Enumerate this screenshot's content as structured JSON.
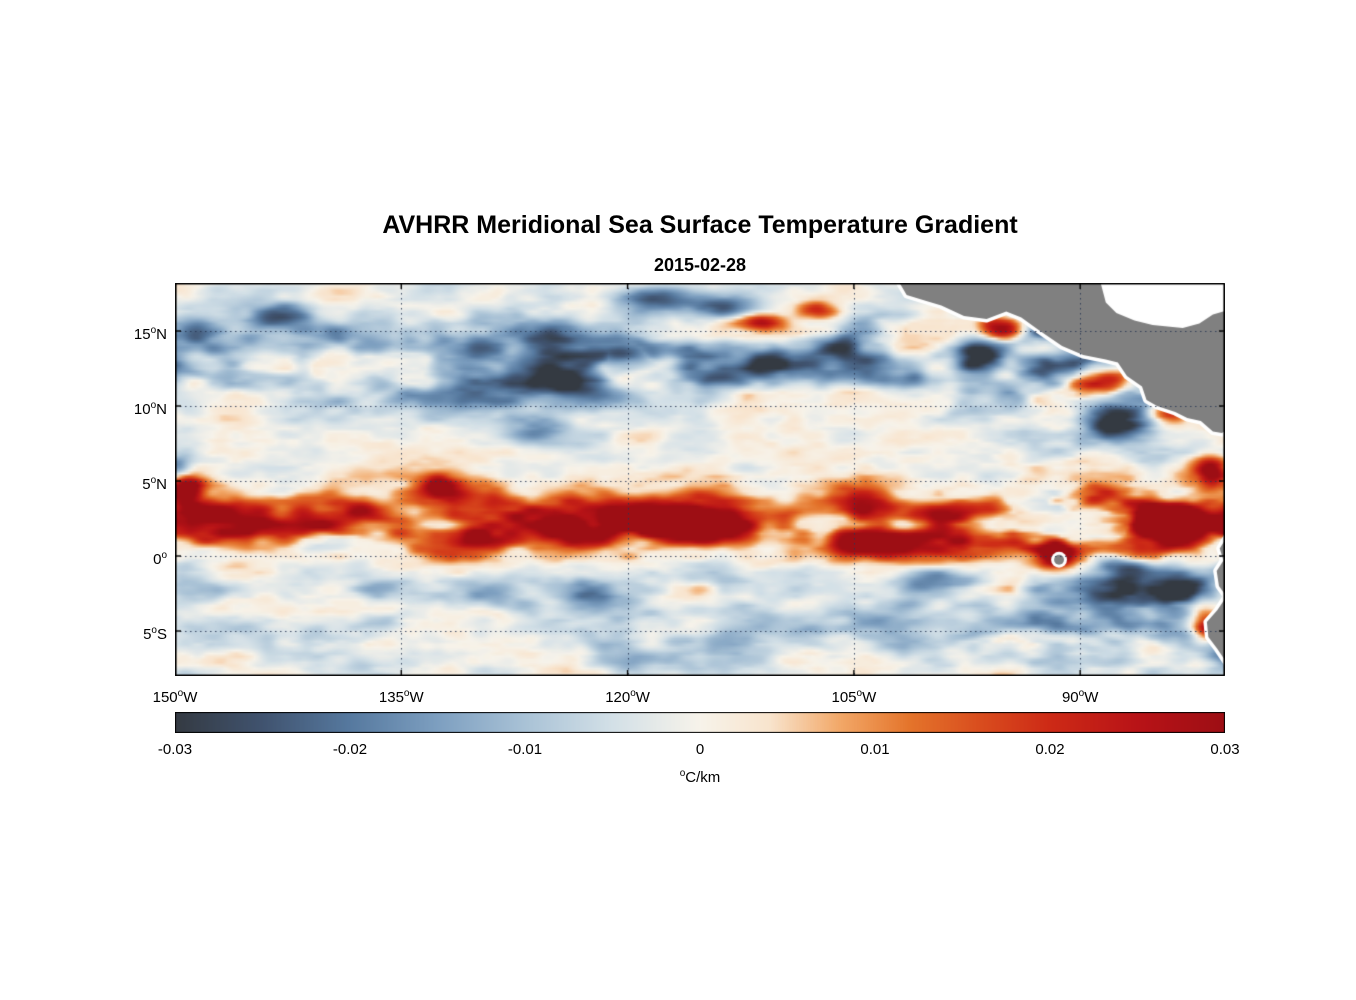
{
  "chart_data": {
    "type": "heatmap",
    "title": "AVHRR Meridional Sea Surface Temperature Gradient",
    "subtitle": "2015-02-28",
    "x_axis": {
      "sup": "o",
      "ticks": [
        {
          "value": -150,
          "num": "150",
          "hemi": "W"
        },
        {
          "value": -135,
          "num": "135",
          "hemi": "W"
        },
        {
          "value": -120,
          "num": "120",
          "hemi": "W"
        },
        {
          "value": -105,
          "num": "105",
          "hemi": "W"
        },
        {
          "value": -90,
          "num": "90",
          "hemi": "W"
        }
      ]
    },
    "y_axis": {
      "sup": "o",
      "ticks": [
        {
          "value": 15,
          "num": "15",
          "hemi": "N"
        },
        {
          "value": 10,
          "num": "10",
          "hemi": "N"
        },
        {
          "value": 5,
          "num": "5",
          "hemi": "N"
        },
        {
          "value": 0,
          "num": "0",
          "hemi": ""
        },
        {
          "value": -5,
          "num": "5",
          "hemi": "S"
        }
      ]
    },
    "extent": {
      "lon_min": -150,
      "lon_max": -80.4,
      "lat_min": -8,
      "lat_max": 18.2
    },
    "grid": {
      "lons": [
        -135,
        -120,
        -105,
        -90
      ],
      "lats": [
        15,
        10,
        5,
        0,
        -5
      ],
      "style": "dotted"
    },
    "colorbar": {
      "min": -0.03,
      "max": 0.03,
      "ticks": [
        -0.03,
        -0.02,
        -0.01,
        0,
        0.01,
        0.02,
        0.03
      ],
      "tick_labels": [
        "-0.03",
        "-0.02",
        "-0.01",
        "0",
        "0.01",
        "0.02",
        "0.03"
      ],
      "unit": "°C/km",
      "unit_sup": "o",
      "unit_text": "C/km",
      "stops": [
        [
          -0.03,
          "#343a42"
        ],
        [
          -0.025,
          "#40536f"
        ],
        [
          -0.02,
          "#56799f"
        ],
        [
          -0.015,
          "#7d9fc0"
        ],
        [
          -0.01,
          "#a9c2d6"
        ],
        [
          -0.005,
          "#d3e0e7"
        ],
        [
          0,
          "#f7f3ea"
        ],
        [
          0.004,
          "#f8e4cd"
        ],
        [
          0.008,
          "#f2a868"
        ],
        [
          0.012,
          "#e4742b"
        ],
        [
          0.016,
          "#d94d1e"
        ],
        [
          0.02,
          "#cd2a16"
        ],
        [
          0.025,
          "#b81317"
        ],
        [
          0.03,
          "#9d0e14"
        ]
      ]
    },
    "land": {
      "color": "#808080",
      "coast_halo": "#ffffff",
      "polygons": {
        "central_america": [
          [
            -102.2,
            18.6
          ],
          [
            -101.5,
            17.4
          ],
          [
            -100.2,
            17.0
          ],
          [
            -99.2,
            16.7
          ],
          [
            -97.7,
            16.0
          ],
          [
            -96.2,
            15.8
          ],
          [
            -94.9,
            16.3
          ],
          [
            -93.9,
            15.9
          ],
          [
            -92.8,
            15.1
          ],
          [
            -91.2,
            14.0
          ],
          [
            -89.8,
            13.4
          ],
          [
            -88.3,
            13.1
          ],
          [
            -87.5,
            12.9
          ],
          [
            -86.9,
            12.0
          ],
          [
            -85.9,
            11.3
          ],
          [
            -85.6,
            10.4
          ],
          [
            -84.9,
            10.0
          ],
          [
            -83.7,
            9.6
          ],
          [
            -82.9,
            9.2
          ],
          [
            -82.0,
            9.0
          ],
          [
            -81.2,
            8.3
          ],
          [
            -80.6,
            8.2
          ],
          [
            -80.0,
            8.6
          ],
          [
            -79.0,
            9.2
          ],
          [
            -79.0,
            19.0
          ],
          [
            -102.2,
            19.0
          ]
        ],
        "caribbean_mask": [
          [
            -88.8,
            18.8
          ],
          [
            -88.3,
            16.9
          ],
          [
            -87.6,
            16.2
          ],
          [
            -86.4,
            15.7
          ],
          [
            -85.2,
            15.4
          ],
          [
            -84.2,
            15.3
          ],
          [
            -83.2,
            15.2
          ],
          [
            -82.1,
            15.5
          ],
          [
            -81.2,
            16.1
          ],
          [
            -80.2,
            16.4
          ],
          [
            -79.0,
            16.6
          ],
          [
            -79.0,
            18.8
          ]
        ],
        "south_america": [
          [
            -79.0,
            2.2
          ],
          [
            -80.2,
            1.4
          ],
          [
            -80.75,
            0.5
          ],
          [
            -80.5,
            -0.3
          ],
          [
            -80.95,
            -1.0
          ],
          [
            -80.8,
            -2.0
          ],
          [
            -80.3,
            -2.7
          ],
          [
            -80.9,
            -3.6
          ],
          [
            -81.6,
            -4.4
          ],
          [
            -81.5,
            -5.4
          ],
          [
            -80.9,
            -6.2
          ],
          [
            -80.3,
            -7.1
          ],
          [
            -79.8,
            -8.5
          ],
          [
            -79.0,
            -8.5
          ]
        ]
      },
      "islands": [
        {
          "name": "galapagos",
          "lon": -91.4,
          "lat": -0.25,
          "r": 0.33
        }
      ]
    },
    "features": [
      {
        "name": "equatorial-front-band",
        "description": "Strong positive (orange-red) meridional SST gradient band along 0-5N spanning the basin, most intense east of 110W and near 92W"
      },
      {
        "name": "northern-negative-patches",
        "description": "Scattered negative (slate-blue) gradient patches between 8N and 17N across the basin"
      },
      {
        "name": "coastal-eddy-dipoles",
        "description": "Intense alternating positive/negative gradients off the Central American coast (Tehuantepec / Papagayo / Panama gulf regions)"
      },
      {
        "name": "southern-weak-negatives",
        "description": "Weaker negative patches south of the equator, 1S-7S"
      },
      {
        "name": "peru-coast-positives",
        "description": "Strong positive gradients near the Ecuador/Peru coast at the lower-right edge"
      },
      {
        "name": "land-mask",
        "description": "Gray land: Mexico and Central America at top right with white Caribbean data gap, South America sliver at bottom right, small Galapagos island"
      }
    ],
    "field": {
      "seed": 7,
      "noise_amp": 0.0085,
      "noise_scale_lon": 3.4,
      "noise_scale_lat": 1.15,
      "east_amp": {
        "from": -102,
        "to": -88,
        "gain": 0.45
      },
      "bands": [
        {
          "center_lat": 2.2,
          "width": 2.3,
          "amp": 0.042,
          "seed": 11,
          "scale_lon": 5.5,
          "scale_lat": 2.3
        },
        {
          "center_lat": 13.2,
          "width": 3.2,
          "amp": -0.03,
          "seed": 23,
          "scale_lon": 5.0,
          "scale_lat": 2.5
        },
        {
          "center_lat": -2.6,
          "width": 2.0,
          "amp": -0.016,
          "seed": 37,
          "scale_lon": 5.0,
          "scale_lat": 2.2
        },
        {
          "center_lat": -6.2,
          "width": 2.0,
          "amp": -0.013,
          "seed": 53,
          "scale_lon": 5.0,
          "scale_lat": 2.2
        }
      ],
      "blobs": [
        [
          -95.3,
          15.2,
          1.5,
          0.9,
          0.035
        ],
        [
          -96.6,
          13.6,
          1.7,
          1.0,
          -0.034
        ],
        [
          -92.3,
          15.0,
          1.2,
          0.7,
          -0.022
        ],
        [
          -89.2,
          11.8,
          2.0,
          0.9,
          0.034
        ],
        [
          -87.6,
          8.9,
          2.2,
          1.2,
          -0.034
        ],
        [
          -84.0,
          9.6,
          1.4,
          0.8,
          0.028
        ],
        [
          -81.3,
          5.6,
          1.1,
          1.1,
          0.03
        ],
        [
          -91.6,
          0.2,
          0.9,
          0.8,
          0.036
        ],
        [
          -84.5,
          2.2,
          2.4,
          1.1,
          0.03
        ],
        [
          -81.6,
          -4.8,
          1.0,
          0.9,
          0.032
        ],
        [
          -83.8,
          -2.2,
          2.0,
          1.0,
          -0.02
        ],
        [
          -87.0,
          -0.8,
          2.2,
          0.9,
          -0.022
        ],
        [
          -120.8,
          13.6,
          2.6,
          1.0,
          -0.022
        ],
        [
          -124.0,
          11.8,
          2.2,
          0.9,
          -0.024
        ],
        [
          -126.0,
          8.2,
          2.0,
          0.9,
          -0.018
        ],
        [
          -113.5,
          16.6,
          2.4,
          0.8,
          -0.02
        ],
        [
          -111.2,
          15.6,
          1.8,
          0.6,
          0.026
        ],
        [
          -107.5,
          16.3,
          1.4,
          0.6,
          0.024
        ],
        [
          -114.5,
          2.1,
          3.2,
          1.0,
          0.027
        ],
        [
          -123.5,
          1.3,
          2.6,
          0.9,
          0.025
        ],
        [
          -104.5,
          0.8,
          2.2,
          0.9,
          0.028
        ],
        [
          -99.5,
          -1.6,
          2.6,
          1.0,
          -0.02
        ],
        [
          -132.5,
          4.8,
          1.1,
          0.7,
          0.02
        ],
        [
          -149.2,
          4.6,
          1.0,
          0.9,
          0.026
        ],
        [
          -149.8,
          5.9,
          1.0,
          0.7,
          -0.022
        ],
        [
          -143.0,
          16.0,
          2.0,
          0.8,
          -0.016
        ],
        [
          -118.0,
          17.2,
          2.5,
          0.8,
          -0.02
        ]
      ]
    }
  }
}
